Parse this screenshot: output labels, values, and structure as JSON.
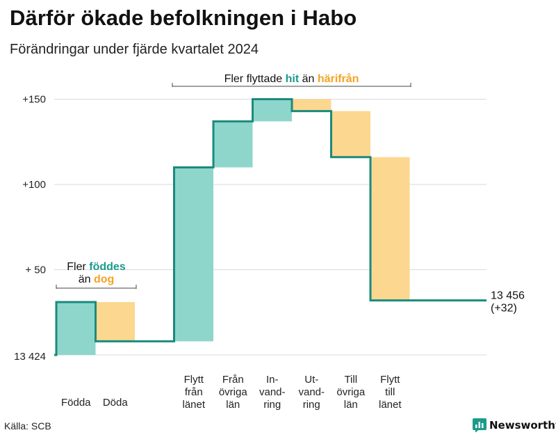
{
  "chart_data": {
    "type": "waterfall",
    "title": "Därför ökade befolkningen i Habo",
    "subtitle": "Förändringar under fjärde kvartalet 2024",
    "base_label": "13 424",
    "start_value": 0,
    "y_ticks": [
      {
        "value": 150,
        "label": "+150"
      },
      {
        "value": 100,
        "label": "+100"
      },
      {
        "value": 50,
        "label": "+ 50"
      }
    ],
    "steps": [
      {
        "label": "Födda",
        "change": 31,
        "kind": "inflow"
      },
      {
        "label": "Döda",
        "change": -23,
        "kind": "outflow"
      },
      {
        "label": "Flytt\nfrån\nlänet",
        "change": 102,
        "kind": "inflow"
      },
      {
        "label": "Från\növriga\nlän",
        "change": 27,
        "kind": "inflow"
      },
      {
        "label": "In-\nvand-\nring",
        "change": 13,
        "kind": "inflow"
      },
      {
        "label": "Ut-\nvand-\nring",
        "change": -7,
        "kind": "outflow"
      },
      {
        "label": "Till\növriga\nlän",
        "change": -27,
        "kind": "outflow"
      },
      {
        "label": "Flytt\ntill\nlänet",
        "change": -84,
        "kind": "outflow"
      }
    ],
    "end_label_line1": "13 456",
    "end_label_line2": "(+32)",
    "annotation_births": {
      "pre": "Fler ",
      "hi1": "föddes",
      "mid": "än ",
      "hi2": "dog"
    },
    "annotation_migration": {
      "pre": "Fler flyttade ",
      "hi1": "hit",
      "mid": " än ",
      "hi2": "härifrån"
    },
    "colors": {
      "inflow": "#8ed6cb",
      "outflow": "#fbd78f",
      "line": "#1a8b7c",
      "accent_in": "#1a9b8a",
      "accent_out": "#f5a321",
      "grid": "#d9d9d9"
    }
  },
  "footer": {
    "source": "Källa: SCB",
    "brand": "Newsworthy"
  }
}
